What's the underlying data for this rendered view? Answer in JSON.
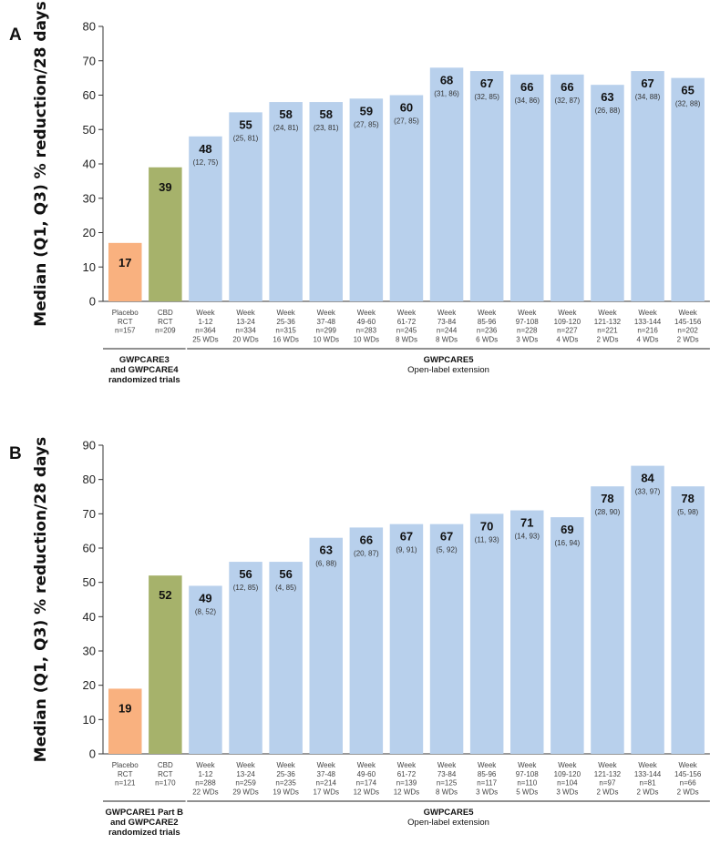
{
  "chart_data": [
    {
      "panel": "A",
      "type": "bar",
      "ylabel": "Median (Q1, Q3) % reduction/28 days",
      "ylim": [
        0,
        80
      ],
      "yticks": [
        0,
        10,
        20,
        30,
        40,
        50,
        60,
        70,
        80
      ],
      "colors": {
        "placebo": "#f9b17f",
        "cbd": "#a6b26b",
        "ole": "#b8d0ec"
      },
      "bars": [
        {
          "value": 17,
          "ci": "",
          "group": "placebo",
          "label": [
            "Placebo",
            "RCT",
            "n=157"
          ]
        },
        {
          "value": 39,
          "ci": "",
          "group": "cbd",
          "label": [
            "CBD",
            "RCT",
            "n=209"
          ]
        },
        {
          "value": 48,
          "ci": "(12, 75)",
          "group": "ole",
          "label": [
            "Week",
            "1-12",
            "n=364",
            "25 WDs"
          ]
        },
        {
          "value": 55,
          "ci": "(25, 81)",
          "group": "ole",
          "label": [
            "Week",
            "13-24",
            "n=334",
            "20 WDs"
          ]
        },
        {
          "value": 58,
          "ci": "(24, 81)",
          "group": "ole",
          "label": [
            "Week",
            "25-36",
            "n=315",
            "16 WDs"
          ]
        },
        {
          "value": 58,
          "ci": "(23, 81)",
          "group": "ole",
          "label": [
            "Week",
            "37-48",
            "n=299",
            "10 WDs"
          ]
        },
        {
          "value": 59,
          "ci": "(27, 85)",
          "group": "ole",
          "label": [
            "Week",
            "49-60",
            "n=283",
            "10 WDs"
          ]
        },
        {
          "value": 60,
          "ci": "(27, 85)",
          "group": "ole",
          "label": [
            "Week",
            "61-72",
            "n=245",
            "8 WDs"
          ]
        },
        {
          "value": 68,
          "ci": "(31, 86)",
          "group": "ole",
          "label": [
            "Week",
            "73-84",
            "n=244",
            "8 WDs"
          ]
        },
        {
          "value": 67,
          "ci": "(32, 85)",
          "group": "ole",
          "label": [
            "Week",
            "85-96",
            "n=236",
            "6 WDs"
          ]
        },
        {
          "value": 66,
          "ci": "(34, 86)",
          "group": "ole",
          "label": [
            "Week",
            "97-108",
            "n=228",
            "3 WDs"
          ]
        },
        {
          "value": 66,
          "ci": "(32, 87)",
          "group": "ole",
          "label": [
            "Week",
            "109-120",
            "n=227",
            "4 WDs"
          ]
        },
        {
          "value": 63,
          "ci": "(26, 88)",
          "group": "ole",
          "label": [
            "Week",
            "121-132",
            "n=221",
            "2 WDs"
          ]
        },
        {
          "value": 67,
          "ci": "(34, 88)",
          "group": "ole",
          "label": [
            "Week",
            "133-144",
            "n=216",
            "4 WDs"
          ]
        },
        {
          "value": 65,
          "ci": "(32, 88)",
          "group": "ole",
          "label": [
            "Week",
            "145-156",
            "n=202",
            "2 WDs"
          ]
        }
      ],
      "groups": [
        {
          "lines": [
            "GWPCARE3",
            "and GWPCARE4",
            "randomized trials"
          ],
          "bold": true
        },
        {
          "lines": [
            "GWPCARE5",
            "Open-label extension"
          ],
          "bold": false
        }
      ]
    },
    {
      "panel": "B",
      "type": "bar",
      "ylabel": "Median (Q1, Q3) % reduction/28 days",
      "ylim": [
        0,
        90
      ],
      "yticks": [
        0,
        10,
        20,
        30,
        40,
        50,
        60,
        70,
        80,
        90
      ],
      "colors": {
        "placebo": "#f9b17f",
        "cbd": "#a6b26b",
        "ole": "#b8d0ec"
      },
      "bars": [
        {
          "value": 19,
          "ci": "",
          "group": "placebo",
          "label": [
            "Placebo",
            "RCT",
            "n=121"
          ]
        },
        {
          "value": 52,
          "ci": "",
          "group": "cbd",
          "label": [
            "CBD",
            "RCT",
            "n=170"
          ]
        },
        {
          "value": 49,
          "ci": "(8, 52)",
          "group": "ole",
          "label": [
            "Week",
            "1-12",
            "n=288",
            "22 WDs"
          ]
        },
        {
          "value": 56,
          "ci": "(12, 85)",
          "group": "ole",
          "label": [
            "Week",
            "13-24",
            "n=259",
            "29 WDs"
          ]
        },
        {
          "value": 56,
          "ci": "(4, 85)",
          "group": "ole",
          "label": [
            "Week",
            "25-36",
            "n=235",
            "19 WDs"
          ]
        },
        {
          "value": 63,
          "ci": "(6, 88)",
          "group": "ole",
          "label": [
            "Week",
            "37-48",
            "n=214",
            "17 WDs"
          ]
        },
        {
          "value": 66,
          "ci": "(20, 87)",
          "group": "ole",
          "label": [
            "Week",
            "49-60",
            "n=174",
            "12 WDs"
          ]
        },
        {
          "value": 67,
          "ci": "(9, 91)",
          "group": "ole",
          "label": [
            "Week",
            "61-72",
            "n=139",
            "12 WDs"
          ]
        },
        {
          "value": 67,
          "ci": "(5, 92)",
          "group": "ole",
          "label": [
            "Week",
            "73-84",
            "n=125",
            "8 WDs"
          ]
        },
        {
          "value": 70,
          "ci": "(11, 93)",
          "group": "ole",
          "label": [
            "Week",
            "85-96",
            "n=117",
            "3 WDs"
          ]
        },
        {
          "value": 71,
          "ci": "(14, 93)",
          "group": "ole",
          "label": [
            "Week",
            "97-108",
            "n=110",
            "5 WDs"
          ]
        },
        {
          "value": 69,
          "ci": "(16, 94)",
          "group": "ole",
          "label": [
            "Week",
            "109-120",
            "n=104",
            "3 WDs"
          ]
        },
        {
          "value": 78,
          "ci": "(28, 90)",
          "group": "ole",
          "label": [
            "Week",
            "121-132",
            "n=97",
            "2 WDs"
          ]
        },
        {
          "value": 84,
          "ci": "(33, 97)",
          "group": "ole",
          "label": [
            "Week",
            "133-144",
            "n=81",
            "2 WDs"
          ]
        },
        {
          "value": 78,
          "ci": "(5, 98)",
          "group": "ole",
          "label": [
            "Week",
            "145-156",
            "n=66",
            "2 WDs"
          ]
        }
      ],
      "groups": [
        {
          "lines": [
            "GWPCARE1 Part B",
            "and GWPCARE2",
            "randomized trials"
          ],
          "bold": true
        },
        {
          "lines": [
            "GWPCARE5",
            "Open-label extension"
          ],
          "bold": false
        }
      ]
    }
  ]
}
